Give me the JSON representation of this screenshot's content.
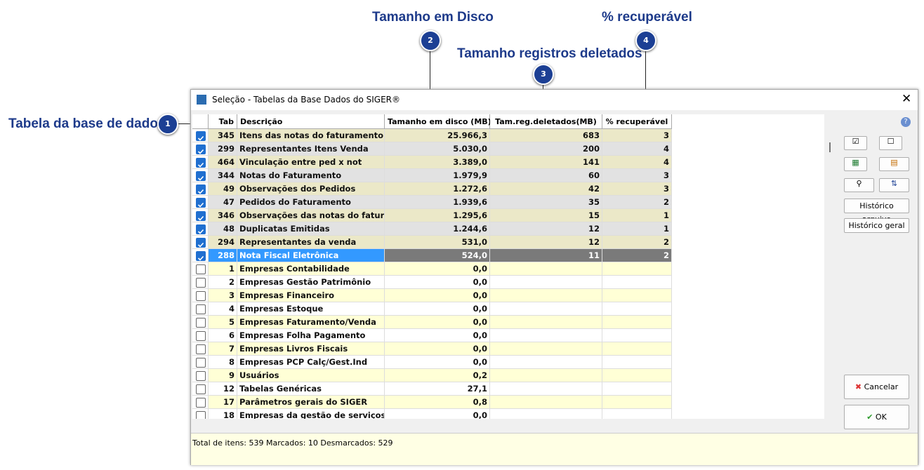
{
  "callouts": [
    {
      "number": "1",
      "label": "Tabela da base de dados"
    },
    {
      "number": "2",
      "label": "Tamanho em Disco"
    },
    {
      "number": "3",
      "label": "Tamanho registros deletados"
    },
    {
      "number": "4",
      "label": "% recuperável"
    }
  ],
  "window": {
    "title": "Seleção - Tabelas da Base Dados do SIGER®"
  },
  "table": {
    "columns": [
      "Tab",
      "Descrição",
      "Tamanho em disco (MB)",
      "Tam.reg.deletados(MB)",
      "% recuperável"
    ],
    "selected_row": 9,
    "rows": [
      {
        "checked": true,
        "cells": [
          "345",
          "Itens das notas do faturamento",
          "25.966,3",
          "683",
          "3"
        ]
      },
      {
        "checked": true,
        "cells": [
          "299",
          "Representantes Itens Venda",
          "5.030,0",
          "200",
          "4"
        ]
      },
      {
        "checked": true,
        "cells": [
          "464",
          "Vinculação entre ped x not",
          "3.389,0",
          "141",
          "4"
        ]
      },
      {
        "checked": true,
        "cells": [
          "344",
          "Notas do Faturamento",
          "1.979,9",
          "60",
          "3"
        ]
      },
      {
        "checked": true,
        "cells": [
          "49",
          "Observações dos Pedidos",
          "1.272,6",
          "42",
          "3"
        ]
      },
      {
        "checked": true,
        "cells": [
          "47",
          "Pedidos do Faturamento",
          "1.939,6",
          "35",
          "2"
        ]
      },
      {
        "checked": true,
        "cells": [
          "346",
          "Observações das notas do fatur",
          "1.295,6",
          "15",
          "1"
        ]
      },
      {
        "checked": true,
        "cells": [
          "48",
          "Duplicatas Emitidas",
          "1.244,6",
          "12",
          "1"
        ]
      },
      {
        "checked": true,
        "cells": [
          "294",
          "Representantes da venda",
          "531,0",
          "12",
          "2"
        ]
      },
      {
        "checked": true,
        "cells": [
          "288",
          "Nota Fiscal Eletrônica",
          "524,0",
          "11",
          "2"
        ]
      },
      {
        "checked": false,
        "cells": [
          "1",
          "Empresas Contabilidade",
          "0,0",
          null,
          null
        ]
      },
      {
        "checked": false,
        "cells": [
          "2",
          "Empresas Gestão Patrimônio",
          "0,0",
          null,
          null
        ]
      },
      {
        "checked": false,
        "cells": [
          "3",
          "Empresas Financeiro",
          "0,0",
          null,
          null
        ]
      },
      {
        "checked": false,
        "cells": [
          "4",
          "Empresas Estoque",
          "0,0",
          null,
          null
        ]
      },
      {
        "checked": false,
        "cells": [
          "5",
          "Empresas Faturamento/Venda",
          "0,0",
          null,
          null
        ]
      },
      {
        "checked": false,
        "cells": [
          "6",
          "Empresas Folha Pagamento",
          "0,0",
          null,
          null
        ]
      },
      {
        "checked": false,
        "cells": [
          "7",
          "Empresas Livros Fiscais",
          "0,0",
          null,
          null
        ]
      },
      {
        "checked": false,
        "cells": [
          "8",
          "Empresas PCP Calç/Gest.Ind",
          "0,0",
          null,
          null
        ]
      },
      {
        "checked": false,
        "cells": [
          "9",
          "Usuários",
          "0,2",
          null,
          null
        ]
      },
      {
        "checked": false,
        "cells": [
          "12",
          "Tabelas Genéricas",
          "27,1",
          null,
          null
        ]
      },
      {
        "checked": false,
        "cells": [
          "17",
          "Parâmetros gerais do SIGER",
          "0,8",
          null,
          null
        ]
      },
      {
        "checked": false,
        "cells": [
          "18",
          "Empresas da gestão de serviços",
          "0,0",
          null,
          null
        ]
      }
    ]
  },
  "buttons": {
    "history_file": "Histórico arquivo",
    "history_general": "Histórico geral",
    "cancel": "Cancelar",
    "ok": "OK"
  },
  "status": "Total de itens: 539 Marcados: 10 Desmarcados: 529"
}
